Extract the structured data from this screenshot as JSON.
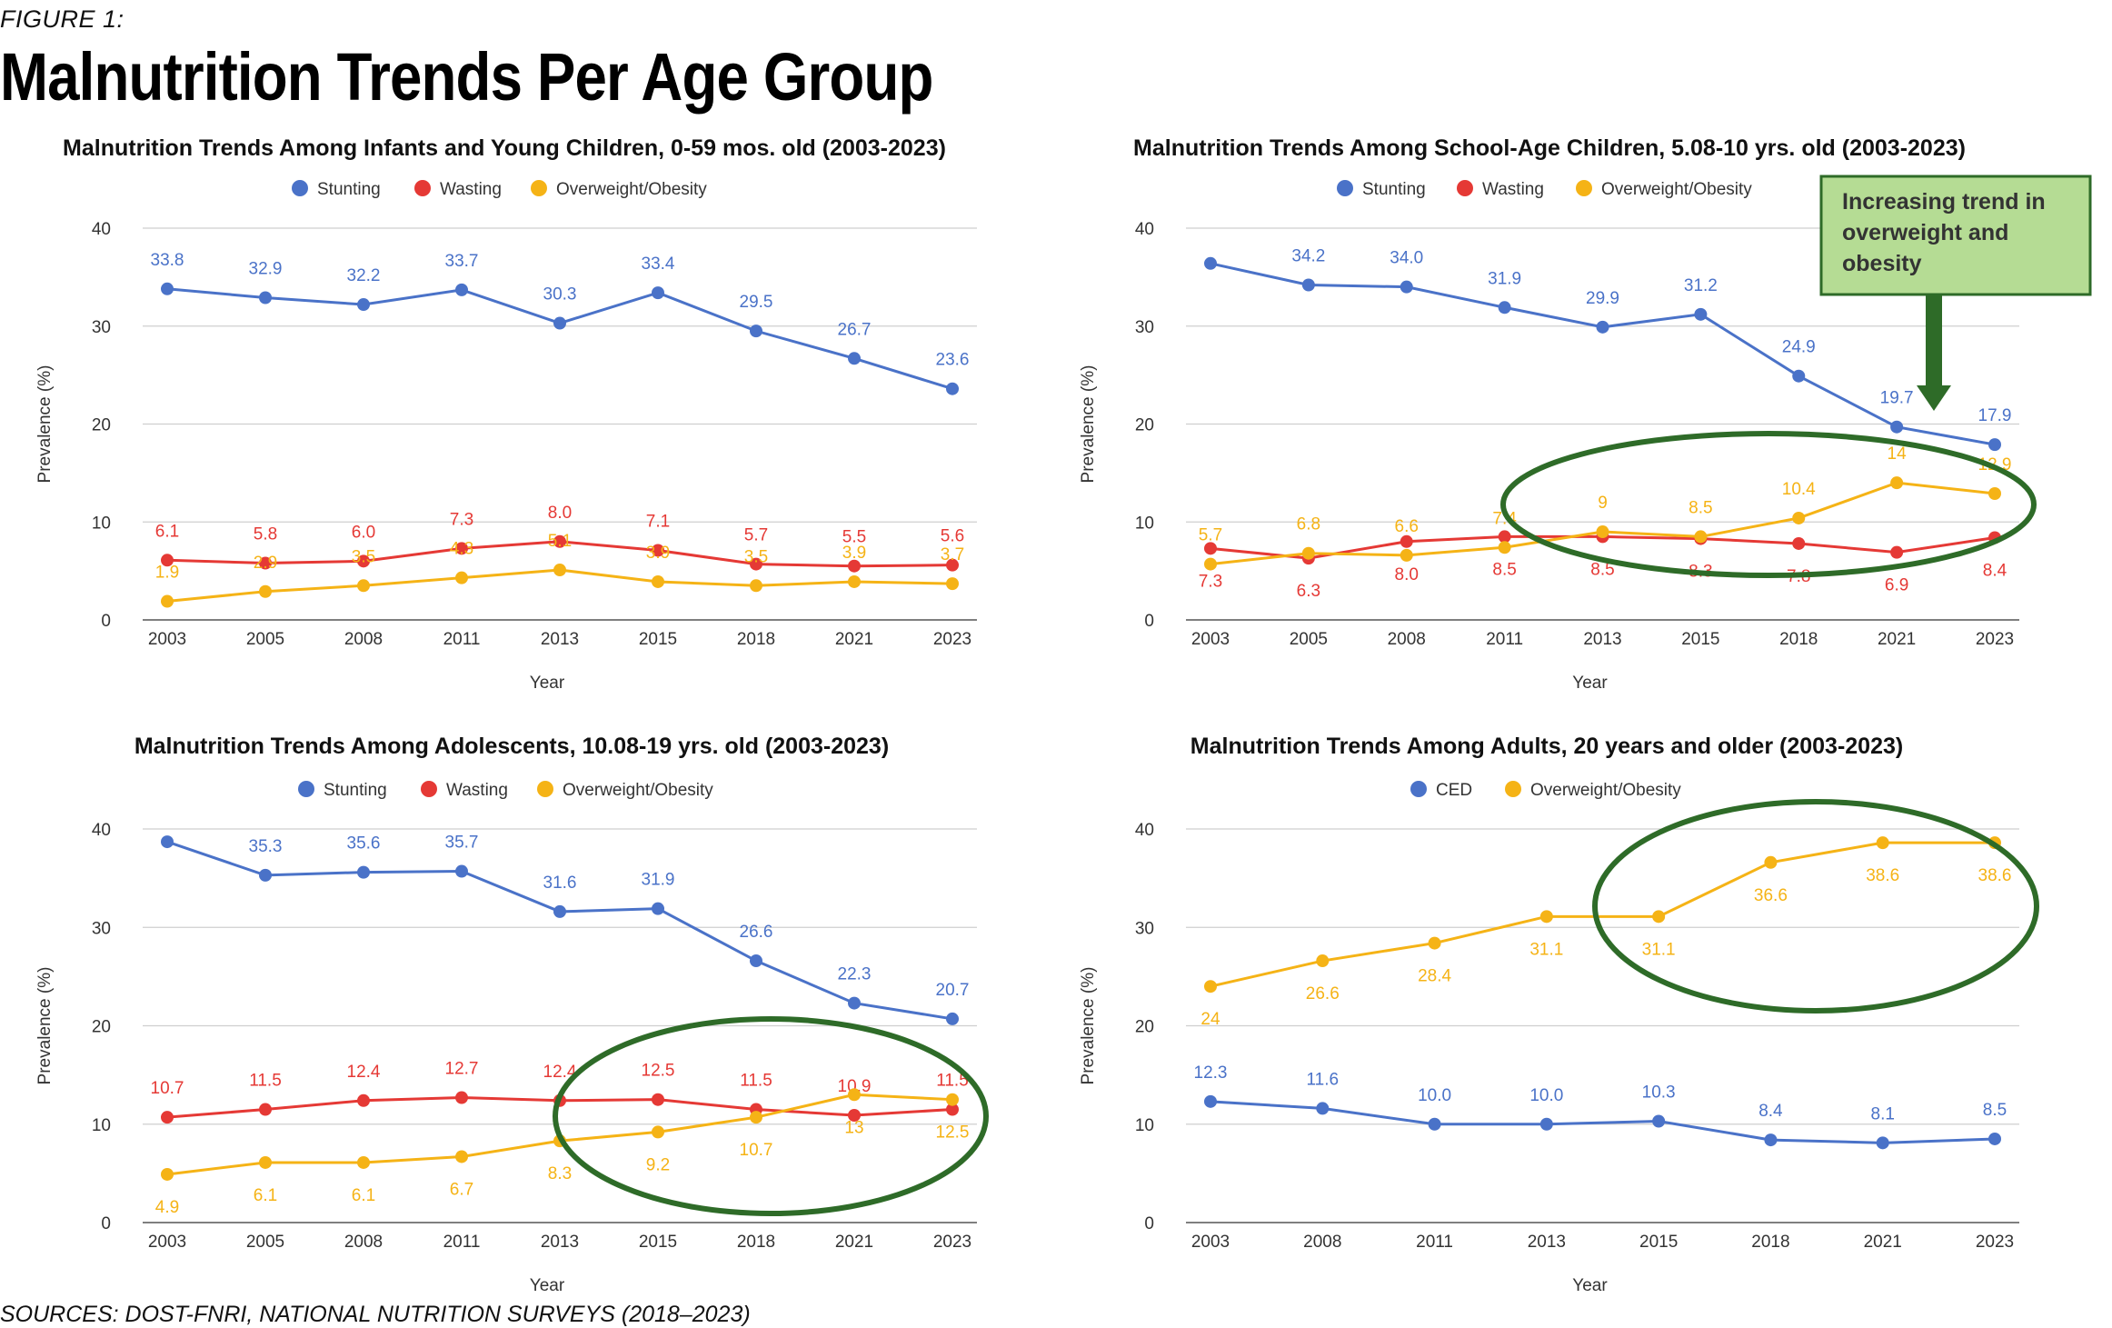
{
  "figure_label": "FIGURE 1:",
  "headline": "Malnutrition Trends Per Age Group",
  "source": "SOURCES: DOST-FNRI, NATIONAL NUTRITION SURVEYS (2018–2023)",
  "colors": {
    "stunting": "#4a72c8",
    "wasting": "#e53935",
    "overweight": "#f5b316",
    "ced": "#4a72c8",
    "highlight": "#2e6b28",
    "callout_fill": "#b5dc94"
  },
  "callout": {
    "text_lines": [
      "Increasing trend in",
      "overweight and",
      "obesity"
    ]
  },
  "chart_data": [
    {
      "type": "line",
      "title": "Malnutrition Trends Among Infants and Young Children, 0-59 mos. old (2003-2023)",
      "xlabel": "Year",
      "ylabel": "Prevalence (%)",
      "ylim": [
        0,
        40
      ],
      "yticks": [
        0,
        10,
        20,
        30,
        40
      ],
      "categories": [
        "2003",
        "2005",
        "2008",
        "2011",
        "2013",
        "2015",
        "2018",
        "2021",
        "2023"
      ],
      "legend": "top-center",
      "grid": true,
      "series": [
        {
          "name": "Stunting",
          "color": "#4a72c8",
          "values": [
            33.8,
            32.9,
            32.2,
            33.7,
            30.3,
            33.4,
            29.5,
            26.7,
            23.6
          ],
          "labels": [
            "33.8",
            "32.9",
            "32.2",
            "33.7",
            "30.3",
            "33.4",
            "29.5",
            "26.7",
            "23.6"
          ],
          "label_pos": "above"
        },
        {
          "name": "Wasting",
          "color": "#e53935",
          "values": [
            6.1,
            5.8,
            6.0,
            7.3,
            8.0,
            7.1,
            5.7,
            5.5,
            5.6
          ],
          "labels": [
            "6.1",
            "5.8",
            "6.0",
            "7.3",
            "8.0",
            "7.1",
            "5.7",
            "5.5",
            "5.6"
          ],
          "label_pos": "above"
        },
        {
          "name": "Overweight/Obesity",
          "color": "#f5b316",
          "values": [
            1.9,
            2.9,
            3.5,
            4.3,
            5.1,
            3.9,
            3.5,
            3.9,
            3.7
          ],
          "labels": [
            "1.9",
            "2.9",
            "3.5",
            "4.3",
            "5.1",
            "3.9",
            "3.5",
            "3.9",
            "3.7"
          ],
          "label_pos": "above"
        }
      ]
    },
    {
      "type": "line",
      "title": "Malnutrition Trends Among School-Age Children, 5.08-10 yrs. old (2003-2023)",
      "xlabel": "Year",
      "ylabel": "Prevalence (%)",
      "ylim": [
        0,
        40
      ],
      "yticks": [
        0,
        10,
        20,
        30,
        40
      ],
      "categories": [
        "2003",
        "2005",
        "2008",
        "2011",
        "2013",
        "2015",
        "2018",
        "2021",
        "2023"
      ],
      "legend": "top-center",
      "grid": true,
      "series": [
        {
          "name": "Stunting",
          "color": "#4a72c8",
          "values": [
            36.4,
            34.2,
            34.0,
            31.9,
            29.9,
            31.2,
            24.9,
            19.7,
            17.9
          ],
          "labels": [
            "",
            "34.2",
            "34.0",
            "31.9",
            "29.9",
            "31.2",
            "24.9",
            "19.7",
            "17.9"
          ],
          "label_pos": "above"
        },
        {
          "name": "Wasting",
          "color": "#e53935",
          "values": [
            7.3,
            6.3,
            8.0,
            8.5,
            8.5,
            8.3,
            7.8,
            6.9,
            8.4
          ],
          "labels": [
            "7.3",
            "6.3",
            "8.0",
            "8.5",
            "8.5",
            "8.3",
            "7.8",
            "6.9",
            "8.4"
          ],
          "label_pos": "below"
        },
        {
          "name": "Overweight/Obesity",
          "color": "#f5b316",
          "values": [
            5.7,
            6.8,
            6.6,
            7.4,
            9,
            8.5,
            10.4,
            14,
            12.9
          ],
          "labels": [
            "5.7",
            "6.8",
            "6.6",
            "7.4",
            "9",
            "8.5",
            "10.4",
            "14",
            "12.9"
          ],
          "label_pos": "above"
        }
      ]
    },
    {
      "type": "line",
      "title": "Malnutrition Trends Among Adolescents, 10.08-19 yrs. old (2003-2023)",
      "xlabel": "Year",
      "ylabel": "Prevalence (%)",
      "ylim": [
        0,
        40
      ],
      "yticks": [
        0,
        10,
        20,
        30,
        40
      ],
      "categories": [
        "2003",
        "2005",
        "2008",
        "2011",
        "2013",
        "2015",
        "2018",
        "2021",
        "2023"
      ],
      "legend": "top-center",
      "grid": true,
      "series": [
        {
          "name": "Stunting",
          "color": "#4a72c8",
          "values": [
            38.7,
            35.3,
            35.6,
            35.7,
            31.6,
            31.9,
            26.6,
            22.3,
            20.7
          ],
          "labels": [
            "",
            "35.3",
            "35.6",
            "35.7",
            "31.6",
            "31.9",
            "26.6",
            "22.3",
            "20.7"
          ],
          "label_pos": "above"
        },
        {
          "name": "Wasting",
          "color": "#e53935",
          "values": [
            10.7,
            11.5,
            12.4,
            12.7,
            12.4,
            12.5,
            11.5,
            10.9,
            11.5
          ],
          "labels": [
            "10.7",
            "11.5",
            "12.4",
            "12.7",
            "12.4",
            "12.5",
            "11.5",
            "10.9",
            "11.5"
          ],
          "label_pos": "above"
        },
        {
          "name": "Overweight/Obesity",
          "color": "#f5b316",
          "values": [
            4.9,
            6.1,
            6.1,
            6.7,
            8.3,
            9.2,
            10.7,
            13,
            12.5
          ],
          "labels": [
            "4.9",
            "6.1",
            "6.1",
            "6.7",
            "8.3",
            "9.2",
            "10.7",
            "13",
            "12.5"
          ],
          "label_pos": "below"
        }
      ]
    },
    {
      "type": "line",
      "title": "Malnutrition Trends Among Adults, 20 years and older (2003-2023)",
      "xlabel": "Year",
      "ylabel": "Prevalence (%)",
      "ylim": [
        0,
        40
      ],
      "yticks": [
        0,
        10,
        20,
        30,
        40
      ],
      "categories": [
        "2003",
        "2008",
        "2011",
        "2013",
        "2015",
        "2018",
        "2021",
        "2023"
      ],
      "legend": "top-center",
      "grid": true,
      "series": [
        {
          "name": "CED",
          "color": "#4a72c8",
          "values": [
            12.3,
            11.6,
            10.0,
            10.0,
            10.3,
            8.4,
            8.1,
            8.5
          ],
          "labels": [
            "12.3",
            "11.6",
            "10.0",
            "10.0",
            "10.3",
            "8.4",
            "8.1",
            "8.5"
          ],
          "label_pos": "above"
        },
        {
          "name": "Overweight/Obesity",
          "color": "#f5b316",
          "values": [
            24,
            26.6,
            28.4,
            31.1,
            31.1,
            36.6,
            38.6,
            38.6
          ],
          "labels": [
            "24",
            "26.6",
            "28.4",
            "31.1",
            "31.1",
            "36.6",
            "38.6",
            "38.6"
          ],
          "label_pos": "below"
        }
      ]
    }
  ]
}
